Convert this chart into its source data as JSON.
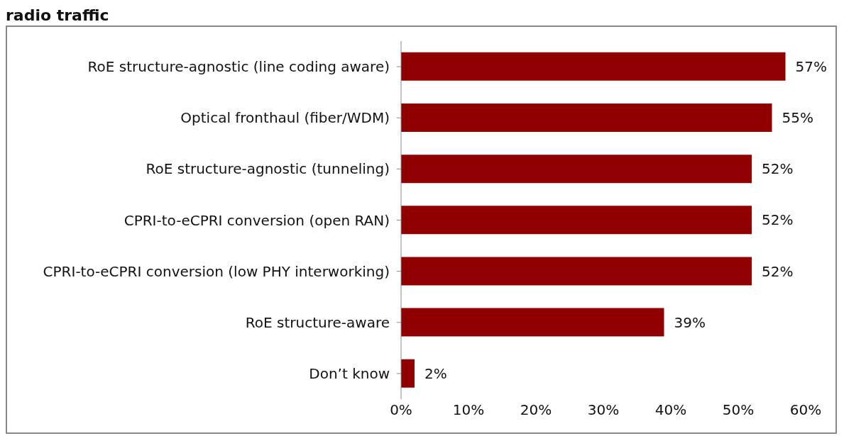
{
  "chart_data": {
    "type": "bar",
    "orientation": "horizontal",
    "title": "radio traffic",
    "categories": [
      "RoE structure-agnostic (line coding aware)",
      "Optical fronthaul (fiber/WDM)",
      "RoE structure-agnostic (tunneling)",
      "CPRI-to-eCPRI conversion (open RAN)",
      "CPRI-to-eCPRI conversion (low PHY interworking)",
      "RoE structure-aware",
      "Don’t know"
    ],
    "values": [
      57,
      55,
      52,
      52,
      52,
      39,
      2
    ],
    "value_labels": [
      "57%",
      "55%",
      "52%",
      "52%",
      "52%",
      "39%",
      "2%"
    ],
    "color": "#900000",
    "xlim": [
      0,
      60
    ],
    "xticks": [
      {
        "value": 0,
        "label": "0%"
      },
      {
        "value": 10,
        "label": "10%"
      },
      {
        "value": 20,
        "label": "20%"
      },
      {
        "value": 30,
        "label": "30%"
      },
      {
        "value": 40,
        "label": "40%"
      },
      {
        "value": 50,
        "label": "50%"
      },
      {
        "value": 60,
        "label": "60%"
      }
    ],
    "legend": false
  }
}
